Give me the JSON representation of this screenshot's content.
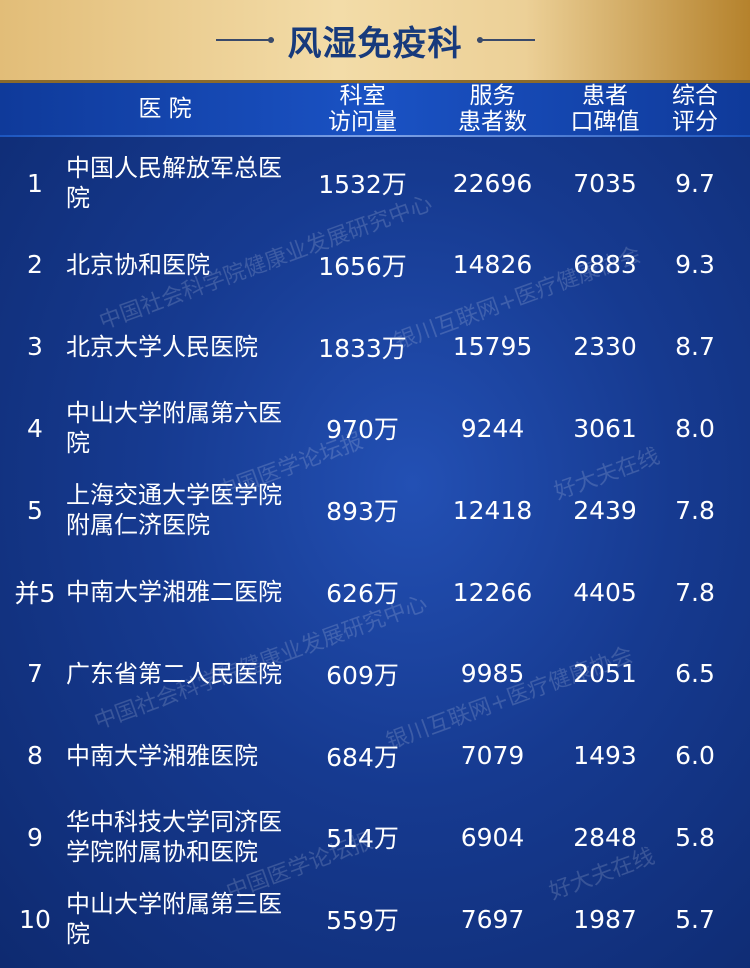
{
  "title": "风湿免疫科",
  "headers": {
    "hospital": "医  院",
    "visits": [
      "科室",
      "访问量"
    ],
    "patients": [
      "服务",
      "患者数"
    ],
    "reputation": [
      "患者",
      "口碑值"
    ],
    "score": [
      "综合",
      "评分"
    ]
  },
  "rows": [
    {
      "rank": "1",
      "name": "中国人民解放军总医院",
      "visits": "1532万",
      "patients": "22696",
      "reputation": "7035",
      "score": "9.7"
    },
    {
      "rank": "2",
      "name": "北京协和医院",
      "visits": "1656万",
      "patients": "14826",
      "reputation": "6883",
      "score": "9.3"
    },
    {
      "rank": "3",
      "name": "北京大学人民医院",
      "visits": "1833万",
      "patients": "15795",
      "reputation": "2330",
      "score": "8.7"
    },
    {
      "rank": "4",
      "name": "中山大学附属第六医院",
      "visits": "970万",
      "patients": "9244",
      "reputation": "3061",
      "score": "8.0"
    },
    {
      "rank": "5",
      "name": "上海交通大学医学院附属仁济医院",
      "visits": "893万",
      "patients": "12418",
      "reputation": "2439",
      "score": "7.8"
    },
    {
      "rank": "并5",
      "name": "中南大学湘雅二医院",
      "visits": "626万",
      "patients": "12266",
      "reputation": "4405",
      "score": "7.8"
    },
    {
      "rank": "7",
      "name": "广东省第二人民医院",
      "visits": "609万",
      "patients": "9985",
      "reputation": "2051",
      "score": "6.5"
    },
    {
      "rank": "8",
      "name": "中南大学湘雅医院",
      "visits": "684万",
      "patients": "7079",
      "reputation": "1493",
      "score": "6.0"
    },
    {
      "rank": "9",
      "name": "华中科技大学同济医学院附属协和医院",
      "visits": "514万",
      "patients": "6904",
      "reputation": "2848",
      "score": "5.8"
    },
    {
      "rank": "10",
      "name": "中山大学附属第三医院",
      "visits": "559万",
      "patients": "7697",
      "reputation": "1987",
      "score": "5.7"
    }
  ],
  "watermarks": [
    "中国社会科学院健康业发展研究中心",
    "银川互联网+医疗健康协会",
    "中国医学论坛报",
    "好大夫在线"
  ],
  "colors": {
    "title_band": "#ecd097",
    "title_text": "#173a7c",
    "background": "#163a90",
    "header": "#1a52c4"
  }
}
